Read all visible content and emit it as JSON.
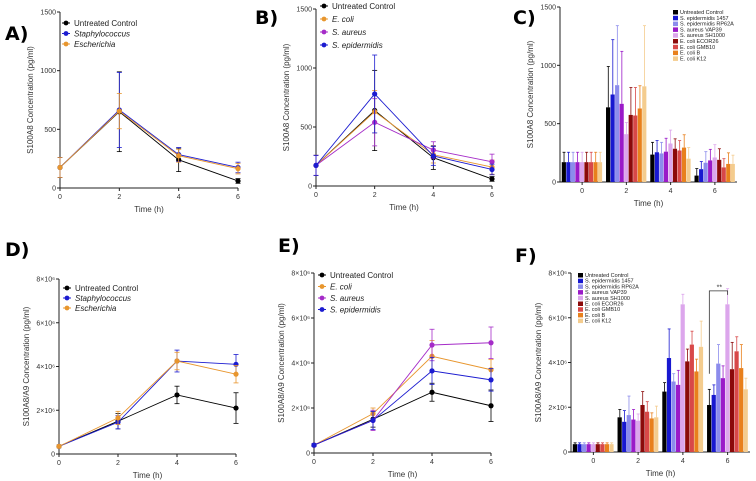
{
  "colors": {
    "control": "#000000",
    "staph": "#1c1cd0",
    "esch": "#e8962e",
    "saureus": "#a52cc8",
    "sepi": "#1c1cd0"
  },
  "bar_colors": [
    "#000000",
    "#1818d0",
    "#8c8cec",
    "#9a1ac8",
    "#dca6ec",
    "#8b0a0a",
    "#d84848",
    "#e8801c",
    "#f4cc8e"
  ],
  "chart_data": [
    {
      "id": "A",
      "panel_label": "A)",
      "type": "line",
      "xlabel": "Time (h)",
      "ylabel": "S100A8 Concentration (pg/ml)",
      "ylim": [
        0,
        1500
      ],
      "yticks": [
        0,
        500,
        1000,
        1500
      ],
      "ytick_labels": [
        "0",
        "500",
        "1000",
        "1500"
      ],
      "x": [
        0,
        2,
        4,
        6
      ],
      "xtick_labels": [
        "0",
        "2",
        "4",
        "6"
      ],
      "legend": "top-left",
      "grid": false,
      "series": [
        {
          "name": "Untreated Control",
          "italic": false,
          "color": "#000000",
          "values": [
            175,
            650,
            240,
            60
          ],
          "err": [
            85,
            340,
            100,
            20
          ]
        },
        {
          "name": "Staphylococcus",
          "italic": true,
          "color": "#1c1cd0",
          "values": [
            175,
            665,
            285,
            175
          ],
          "err": [
            85,
            320,
            60,
            45
          ]
        },
        {
          "name": "Escherichia",
          "italic": true,
          "color": "#e8962e",
          "values": [
            175,
            655,
            275,
            165
          ],
          "err": [
            85,
            150,
            55,
            45
          ]
        }
      ]
    },
    {
      "id": "B",
      "panel_label": "B)",
      "type": "line",
      "xlabel": "Time (h)",
      "ylabel": "S100A8 Concentration (pg/ml)",
      "ylim": [
        0,
        1500
      ],
      "yticks": [
        0,
        500,
        1000,
        1500
      ],
      "ytick_labels": [
        "0",
        "500",
        "1000",
        "1500"
      ],
      "x": [
        0,
        2,
        4,
        6
      ],
      "xtick_labels": [
        "0",
        "2",
        "4",
        "6"
      ],
      "legend": "top-left",
      "grid": false,
      "series": [
        {
          "name": "Untreated Control",
          "italic": false,
          "color": "#000000",
          "values": [
            175,
            640,
            240,
            60
          ],
          "err": [
            85,
            340,
            100,
            20
          ]
        },
        {
          "name": "E. coli",
          "italic": true,
          "color": "#e8962e",
          "values": [
            175,
            630,
            265,
            160
          ],
          "err": [
            85,
            180,
            70,
            60
          ]
        },
        {
          "name": "S. aureus",
          "italic": true,
          "color": "#a52cc8",
          "values": [
            175,
            540,
            305,
            205
          ],
          "err": [
            85,
            200,
            70,
            65
          ]
        },
        {
          "name": "S. epidermidis",
          "italic": true,
          "color": "#1c1cd0",
          "values": [
            175,
            780,
            255,
            140
          ],
          "err": [
            85,
            330,
            80,
            45
          ]
        }
      ]
    },
    {
      "id": "C",
      "panel_label": "C)",
      "type": "bar",
      "xlabel": "Time (h)",
      "ylabel": "S100A8 Concentration (pg/ml)",
      "ylim": [
        0,
        1500
      ],
      "yticks": [
        0,
        500,
        1000,
        1500
      ],
      "ytick_labels": [
        "0",
        "500",
        "1000",
        "1500"
      ],
      "categories": [
        "0",
        "2",
        "4",
        "6"
      ],
      "legend": "top-right",
      "grid": false,
      "series": [
        {
          "name": "Untreated Control",
          "values": [
            170,
            640,
            235,
            55
          ],
          "err": [
            85,
            350,
            105,
            60
          ]
        },
        {
          "name": "S. epidermidis 1457",
          "values": [
            170,
            750,
            255,
            110
          ],
          "err": [
            85,
            470,
            100,
            65
          ]
        },
        {
          "name": "S. epidermidis RP62A",
          "values": [
            170,
            830,
            245,
            165
          ],
          "err": [
            85,
            510,
            95,
            95
          ]
        },
        {
          "name": "S. aureus VAP39",
          "values": [
            170,
            670,
            260,
            185
          ],
          "err": [
            85,
            450,
            115,
            95
          ]
        },
        {
          "name": "S. aureus SH1000",
          "values": [
            170,
            410,
            330,
            210
          ],
          "err": [
            85,
            100,
            115,
            110
          ]
        },
        {
          "name": "E. coli ECOR26",
          "values": [
            170,
            575,
            285,
            190
          ],
          "err": [
            85,
            235,
            85,
            95
          ]
        },
        {
          "name": "E. coli GMB10",
          "values": [
            170,
            570,
            270,
            125
          ],
          "err": [
            85,
            240,
            85,
            75
          ]
        },
        {
          "name": "E. coli B",
          "values": [
            170,
            630,
            295,
            155
          ],
          "err": [
            85,
            195,
            110,
            95
          ]
        },
        {
          "name": "E. coli K12",
          "values": [
            170,
            820,
            200,
            155
          ],
          "err": [
            85,
            520,
            95,
            75
          ]
        }
      ]
    },
    {
      "id": "D",
      "panel_label": "D)",
      "type": "line",
      "xlabel": "Time (h)",
      "ylabel": "S100A8/A9 Concentration (pg/ml)",
      "ylim": [
        0,
        8000000
      ],
      "yticks": [
        0,
        2000000,
        4000000,
        6000000,
        8000000
      ],
      "ytick_labels": [
        "0",
        "2×10⁶",
        "4×10⁶",
        "6×10⁶",
        "8×10⁶"
      ],
      "x": [
        0,
        2,
        4,
        6
      ],
      "xtick_labels": [
        "0",
        "2",
        "4",
        "6"
      ],
      "legend": "top-left",
      "grid": false,
      "series": [
        {
          "name": "Untreated Control",
          "italic": false,
          "color": "#000000",
          "values": [
            350000,
            1500000,
            2700000,
            2100000
          ],
          "err": [
            60000,
            350000,
            400000,
            700000
          ]
        },
        {
          "name": "Staphylococcus",
          "italic": true,
          "color": "#1c1cd0",
          "values": [
            350000,
            1450000,
            4250000,
            4100000
          ],
          "err": [
            60000,
            300000,
            500000,
            450000
          ]
        },
        {
          "name": "Escherichia",
          "italic": true,
          "color": "#e8962e",
          "values": [
            350000,
            1650000,
            4250000,
            3650000
          ],
          "err": [
            60000,
            300000,
            400000,
            400000
          ]
        }
      ]
    },
    {
      "id": "E",
      "panel_label": "E)",
      "type": "line",
      "xlabel": "Time (h)",
      "ylabel": "S100A8/A9 Concentration (pg/ml)",
      "ylim": [
        0,
        8000000
      ],
      "yticks": [
        0,
        2000000,
        4000000,
        6000000,
        8000000
      ],
      "ytick_labels": [
        "0",
        "2×10⁶",
        "4×10⁶",
        "6×10⁶",
        "8×10⁶"
      ],
      "x": [
        0,
        2,
        4,
        6
      ],
      "xtick_labels": [
        "0",
        "2",
        "4",
        "6"
      ],
      "legend": "top-left",
      "grid": false,
      "series": [
        {
          "name": "Untreated Control",
          "italic": false,
          "color": "#000000",
          "values": [
            350000,
            1500000,
            2700000,
            2100000
          ],
          "err": [
            60000,
            350000,
            400000,
            700000
          ]
        },
        {
          "name": "E. coli",
          "italic": true,
          "color": "#e8962e",
          "values": [
            350000,
            1750000,
            4300000,
            3700000
          ],
          "err": [
            60000,
            250000,
            700000,
            450000
          ]
        },
        {
          "name": "S. aureus",
          "italic": true,
          "color": "#a52cc8",
          "values": [
            350000,
            1450000,
            4800000,
            4900000
          ],
          "err": [
            60000,
            450000,
            700000,
            700000
          ]
        },
        {
          "name": "S. epidermidis",
          "italic": true,
          "color": "#1c1cd0",
          "values": [
            350000,
            1450000,
            3650000,
            3250000
          ],
          "err": [
            60000,
            400000,
            600000,
            500000
          ]
        }
      ]
    },
    {
      "id": "F",
      "panel_label": "F)",
      "type": "bar",
      "xlabel": "Time (h)",
      "ylabel": "S100A8/A9 Concentration (pg/ml)",
      "ylim": [
        0,
        8000000
      ],
      "yticks": [
        0,
        2000000,
        4000000,
        6000000,
        8000000
      ],
      "ytick_labels": [
        "0",
        "2×10⁶",
        "4×10⁶",
        "6×10⁶",
        "8×10⁶"
      ],
      "categories": [
        "0",
        "2",
        "4",
        "6"
      ],
      "legend": "top-left",
      "grid": false,
      "annotation": "**",
      "series": [
        {
          "name": "Untreated Control",
          "values": [
            350000,
            1550000,
            2700000,
            2100000
          ],
          "err": [
            60000,
            350000,
            400000,
            700000
          ]
        },
        {
          "name": "S. epidermidis 1457",
          "values": [
            350000,
            1350000,
            4200000,
            2550000
          ],
          "err": [
            60000,
            500000,
            1300000,
            450000
          ]
        },
        {
          "name": "S. epidermidis RP62A",
          "values": [
            350000,
            1650000,
            3150000,
            3950000
          ],
          "err": [
            60000,
            850000,
            350000,
            850000
          ]
        },
        {
          "name": "S. aureus VAP39",
          "values": [
            350000,
            1450000,
            3000000,
            3300000
          ],
          "err": [
            60000,
            450000,
            650000,
            550000
          ]
        },
        {
          "name": "S. aureus SH1000",
          "values": [
            350000,
            1400000,
            6600000,
            6600000
          ],
          "err": [
            60000,
            300000,
            450000,
            700000
          ]
        },
        {
          "name": "E. coli ECOR26",
          "values": [
            350000,
            2100000,
            4050000,
            3700000
          ],
          "err": [
            60000,
            600000,
            550000,
            1200000
          ]
        },
        {
          "name": "E. coli GMB10",
          "values": [
            350000,
            1800000,
            4800000,
            4500000
          ],
          "err": [
            60000,
            450000,
            600000,
            650000
          ]
        },
        {
          "name": "E. coli B",
          "values": [
            350000,
            1500000,
            3600000,
            3750000
          ],
          "err": [
            60000,
            250000,
            550000,
            1050000
          ]
        },
        {
          "name": "E. coli K12",
          "values": [
            350000,
            1550000,
            4700000,
            2800000
          ],
          "err": [
            60000,
            500000,
            1150000,
            500000
          ]
        }
      ]
    }
  ]
}
